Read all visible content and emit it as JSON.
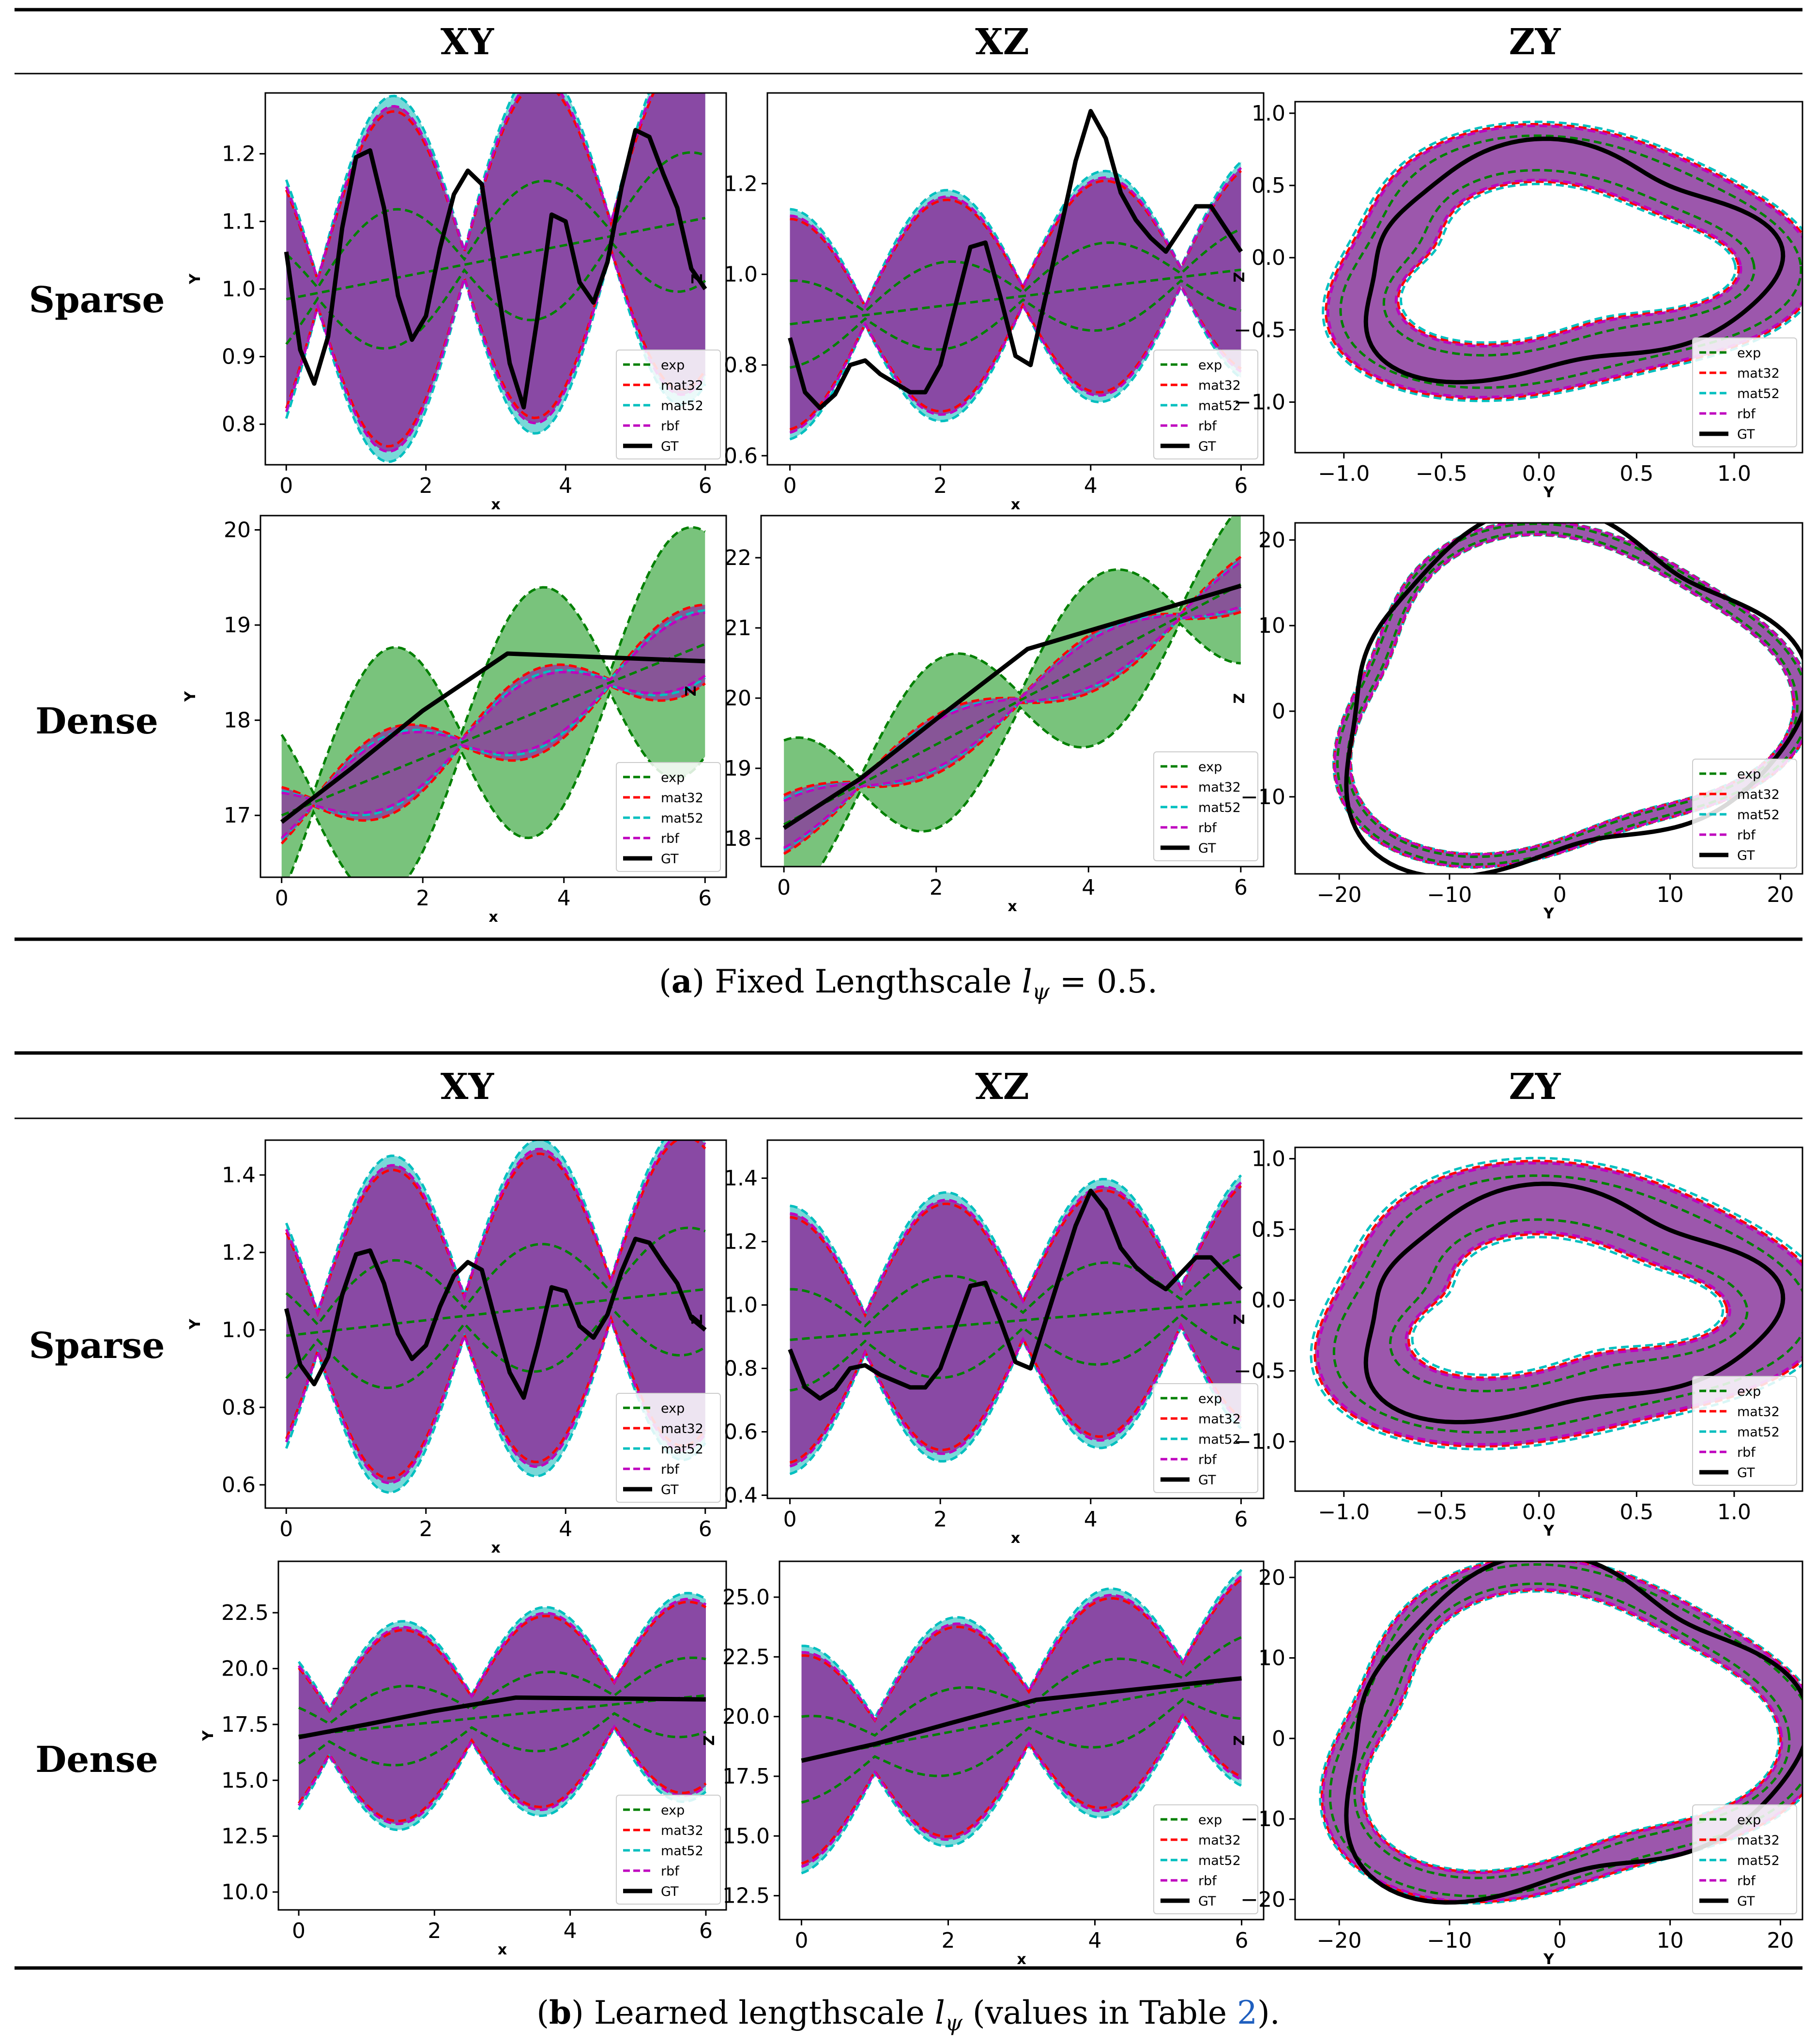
{
  "colors": {
    "exp": "#008000",
    "mat32": "#ff0000",
    "mat52": "#00bfbf",
    "rbf": "#bf00bf",
    "GT": "#000000",
    "purple_fill": "#8b3a9e",
    "green_fill": "#4caf50",
    "cyan_fill": "#40c8c8",
    "link": "#1f5fbf"
  },
  "sections": [
    {
      "column_headers": [
        "XY",
        "XZ",
        "ZY"
      ],
      "row_labels": [
        "Sparse",
        "Dense"
      ],
      "caption": {
        "label": "a",
        "prefix": "(",
        "suffix": ") Fixed Lengthscale",
        "math": "l",
        "sub": "ψ",
        "rest": " = 0.5."
      }
    },
    {
      "column_headers": [
        "XY",
        "XZ",
        "ZY"
      ],
      "row_labels": [
        "Sparse",
        "Dense"
      ],
      "caption": {
        "label": "b",
        "prefix": "(",
        "suffix": ") Learned lengthscale",
        "math": "l",
        "sub": "ψ",
        "rest_before_link": " (values in Table ",
        "link": "2",
        "rest_after_link": ")."
      }
    }
  ],
  "legend_entries": [
    "exp",
    "mat32",
    "mat52",
    "rbf",
    "GT"
  ],
  "chart_data": [
    {
      "id": "a-sparse-xy",
      "type": "line",
      "xlabel": "x",
      "ylabel": "Y",
      "xlim": [
        -0.3,
        6.3
      ],
      "ylim": [
        0.74,
        1.29
      ],
      "xticks": [
        "0",
        "2",
        "4",
        "6"
      ],
      "yticks": [
        "0.8",
        "0.9",
        "1.0",
        "1.1",
        "1.2"
      ],
      "gt": [
        [
          0,
          1.055
        ],
        [
          0.2,
          0.91
        ],
        [
          0.4,
          0.86
        ],
        [
          0.6,
          0.93
        ],
        [
          0.8,
          1.09
        ],
        [
          1.0,
          1.195
        ],
        [
          1.2,
          1.205
        ],
        [
          1.4,
          1.12
        ],
        [
          1.6,
          0.99
        ],
        [
          1.8,
          0.925
        ],
        [
          2.0,
          0.96
        ],
        [
          2.2,
          1.06
        ],
        [
          2.4,
          1.14
        ],
        [
          2.6,
          1.175
        ],
        [
          2.8,
          1.155
        ],
        [
          3.0,
          1.02
        ],
        [
          3.2,
          0.89
        ],
        [
          3.4,
          0.825
        ],
        [
          3.6,
          0.96
        ],
        [
          3.8,
          1.11
        ],
        [
          4.0,
          1.1
        ],
        [
          4.2,
          1.01
        ],
        [
          4.4,
          0.98
        ],
        [
          4.6,
          1.04
        ],
        [
          4.8,
          1.15
        ],
        [
          5.0,
          1.235
        ],
        [
          5.2,
          1.225
        ],
        [
          5.4,
          1.17
        ],
        [
          5.6,
          1.12
        ],
        [
          5.8,
          1.03
        ],
        [
          6.0,
          1.0
        ]
      ],
      "model_mean": {
        "center": 0.985,
        "amp": 0.0,
        "slope": 0.02
      },
      "band": {
        "amp": 0.235,
        "period": 2.1,
        "phase": 0.45,
        "extra": 0.02
      },
      "fill": "purple"
    },
    {
      "id": "a-sparse-xz",
      "type": "line",
      "xlabel": "x",
      "ylabel": "Z",
      "xlim": [
        -0.3,
        6.3
      ],
      "ylim": [
        0.58,
        1.4
      ],
      "xticks": [
        "0",
        "2",
        "4",
        "6"
      ],
      "yticks": [
        "0.6",
        "0.8",
        "1.0",
        "1.2"
      ],
      "gt": [
        [
          0,
          0.86
        ],
        [
          0.2,
          0.74
        ],
        [
          0.4,
          0.705
        ],
        [
          0.6,
          0.735
        ],
        [
          0.8,
          0.8
        ],
        [
          1.0,
          0.81
        ],
        [
          1.2,
          0.78
        ],
        [
          1.4,
          0.76
        ],
        [
          1.6,
          0.74
        ],
        [
          1.8,
          0.74
        ],
        [
          2.0,
          0.8
        ],
        [
          2.2,
          0.93
        ],
        [
          2.4,
          1.06
        ],
        [
          2.6,
          1.07
        ],
        [
          2.8,
          0.95
        ],
        [
          3.0,
          0.82
        ],
        [
          3.2,
          0.8
        ],
        [
          3.4,
          0.95
        ],
        [
          3.6,
          1.1
        ],
        [
          3.8,
          1.25
        ],
        [
          4.0,
          1.36
        ],
        [
          4.2,
          1.3
        ],
        [
          4.4,
          1.18
        ],
        [
          4.6,
          1.12
        ],
        [
          4.8,
          1.08
        ],
        [
          5.0,
          1.05
        ],
        [
          5.2,
          1.1
        ],
        [
          5.4,
          1.15
        ],
        [
          5.6,
          1.15
        ],
        [
          5.8,
          1.1
        ],
        [
          6.0,
          1.05
        ]
      ],
      "model_mean": {
        "center": 0.89,
        "amp": 0.0,
        "slope": 0.02
      },
      "band": {
        "amp": 0.22,
        "period": 2.1,
        "phase": 1.0,
        "extra": 0.02
      },
      "fill": "purple"
    },
    {
      "id": "a-sparse-zy",
      "type": "line",
      "xlabel": "Y",
      "ylabel": "Z",
      "xlim": [
        -1.25,
        1.35
      ],
      "ylim": [
        -1.35,
        1.08
      ],
      "xticks": [
        "−1.0",
        "−0.5",
        "0.0",
        "0.5",
        "1.0"
      ],
      "yticks": [
        "−1.0",
        "−0.5",
        "0.0",
        "0.5",
        "1.0"
      ],
      "xtickvals": [
        -1.0,
        -0.5,
        0.0,
        0.5,
        1.0
      ],
      "ytickvals": [
        -1.0,
        -0.5,
        0.0,
        0.5,
        1.0
      ],
      "ring": {
        "cx": 0.1,
        "cy": -0.05,
        "rx": 1.02,
        "ry": 0.72,
        "width": 0.2
      },
      "fill": "purple"
    },
    {
      "id": "a-dense-xy",
      "type": "line",
      "xlabel": "x",
      "ylabel": "Y",
      "xlim": [
        -0.3,
        6.3
      ],
      "ylim": [
        16.35,
        20.15
      ],
      "xticks": [
        "0",
        "2",
        "4",
        "6"
      ],
      "yticks": [
        "17",
        "18",
        "19",
        "20"
      ],
      "gt": [
        [
          0,
          16.93
        ],
        [
          1,
          17.5
        ],
        [
          2,
          18.1
        ],
        [
          3.2,
          18.7
        ],
        [
          6,
          18.62
        ]
      ],
      "model_mean": {
        "center": 17.0,
        "amp": 0.0,
        "slope": 0.3
      },
      "band": {
        "amp": 1.2,
        "period": 2.1,
        "phase": 0.45,
        "extra": 0.1
      },
      "fill": "green"
    },
    {
      "id": "a-dense-xz",
      "type": "line",
      "xlabel": "x",
      "ylabel": "Z",
      "xlim": [
        -0.3,
        6.3
      ],
      "ylim": [
        17.6,
        22.6
      ],
      "xticks": [
        "0",
        "2",
        "4",
        "6"
      ],
      "yticks": [
        "18",
        "19",
        "20",
        "21",
        "22"
      ],
      "gt": [
        [
          0,
          18.15
        ],
        [
          1,
          18.85
        ],
        [
          2,
          19.7
        ],
        [
          3.2,
          20.7
        ],
        [
          6,
          21.6
        ]
      ],
      "model_mean": {
        "center": 18.2,
        "amp": 0.0,
        "slope": 0.57
      },
      "band": {
        "amp": 1.1,
        "period": 2.1,
        "phase": 1.0,
        "extra": 0.1
      },
      "fill": "green"
    },
    {
      "id": "a-dense-zy",
      "type": "line",
      "xlabel": "Y",
      "ylabel": "Z",
      "xlim": [
        -24,
        22
      ],
      "ylim": [
        -19,
        22
      ],
      "xticks": [
        "−20",
        "−10",
        "0",
        "10",
        "20"
      ],
      "yticks": [
        "−10",
        "0",
        "10",
        "20"
      ],
      "xtickvals": [
        -20,
        -10,
        0,
        10,
        20
      ],
      "ytickvals": [
        -10,
        0,
        10,
        20
      ],
      "ring": {
        "cx": 0.0,
        "cy": 1.5,
        "rx": 20.0,
        "ry": 18.5,
        "width": 0.8
      },
      "fill": "purple"
    },
    {
      "id": "b-sparse-xy",
      "type": "line",
      "xlabel": "x",
      "ylabel": "Y",
      "xlim": [
        -0.3,
        6.3
      ],
      "ylim": [
        0.54,
        1.49
      ],
      "xticks": [
        "0",
        "2",
        "4",
        "6"
      ],
      "yticks": [
        "0.6",
        "0.8",
        "1.0",
        "1.2",
        "1.4"
      ],
      "gt": [
        [
          0,
          1.055
        ],
        [
          0.2,
          0.91
        ],
        [
          0.4,
          0.86
        ],
        [
          0.6,
          0.93
        ],
        [
          0.8,
          1.09
        ],
        [
          1.0,
          1.195
        ],
        [
          1.2,
          1.205
        ],
        [
          1.4,
          1.12
        ],
        [
          1.6,
          0.99
        ],
        [
          1.8,
          0.925
        ],
        [
          2.0,
          0.96
        ],
        [
          2.2,
          1.06
        ],
        [
          2.4,
          1.14
        ],
        [
          2.6,
          1.175
        ],
        [
          2.8,
          1.155
        ],
        [
          3.0,
          1.02
        ],
        [
          3.2,
          0.89
        ],
        [
          3.4,
          0.825
        ],
        [
          3.6,
          0.96
        ],
        [
          3.8,
          1.11
        ],
        [
          4.0,
          1.1
        ],
        [
          4.2,
          1.01
        ],
        [
          4.4,
          0.98
        ],
        [
          4.6,
          1.04
        ],
        [
          4.8,
          1.15
        ],
        [
          5.0,
          1.235
        ],
        [
          5.2,
          1.225
        ],
        [
          5.4,
          1.17
        ],
        [
          5.6,
          1.12
        ],
        [
          5.8,
          1.03
        ],
        [
          6.0,
          1.0
        ]
      ],
      "model_mean": {
        "center": 0.985,
        "amp": 0.0,
        "slope": 0.02
      },
      "band": {
        "amp": 0.36,
        "period": 2.1,
        "phase": 0.45,
        "extra": 0.05
      },
      "fill": "purple"
    },
    {
      "id": "b-sparse-xz",
      "type": "line",
      "xlabel": "x",
      "ylabel": "Z",
      "xlim": [
        -0.3,
        6.3
      ],
      "ylim": [
        0.39,
        1.52
      ],
      "xticks": [
        "0",
        "2",
        "4",
        "6"
      ],
      "yticks": [
        "0.4",
        "0.6",
        "0.8",
        "1.0",
        "1.2",
        "1.4"
      ],
      "gt": [
        [
          0,
          0.86
        ],
        [
          0.2,
          0.74
        ],
        [
          0.4,
          0.705
        ],
        [
          0.6,
          0.735
        ],
        [
          0.8,
          0.8
        ],
        [
          1.0,
          0.81
        ],
        [
          1.2,
          0.78
        ],
        [
          1.4,
          0.76
        ],
        [
          1.6,
          0.74
        ],
        [
          1.8,
          0.74
        ],
        [
          2.0,
          0.8
        ],
        [
          2.2,
          0.93
        ],
        [
          2.4,
          1.06
        ],
        [
          2.6,
          1.07
        ],
        [
          2.8,
          0.95
        ],
        [
          3.0,
          0.82
        ],
        [
          3.2,
          0.8
        ],
        [
          3.4,
          0.95
        ],
        [
          3.6,
          1.1
        ],
        [
          3.8,
          1.25
        ],
        [
          4.0,
          1.36
        ],
        [
          4.2,
          1.3
        ],
        [
          4.4,
          1.18
        ],
        [
          4.6,
          1.12
        ],
        [
          4.8,
          1.08
        ],
        [
          5.0,
          1.05
        ],
        [
          5.2,
          1.1
        ],
        [
          5.4,
          1.15
        ],
        [
          5.6,
          1.15
        ],
        [
          5.8,
          1.1
        ],
        [
          6.0,
          1.05
        ]
      ],
      "model_mean": {
        "center": 0.89,
        "amp": 0.0,
        "slope": 0.02
      },
      "band": {
        "amp": 0.34,
        "period": 2.1,
        "phase": 1.0,
        "extra": 0.06
      },
      "fill": "purple"
    },
    {
      "id": "b-sparse-zy",
      "type": "line",
      "xlabel": "Y",
      "ylabel": "Z",
      "xlim": [
        -1.25,
        1.35
      ],
      "ylim": [
        -1.35,
        1.08
      ],
      "xticks": [
        "−1.0",
        "−0.5",
        "0.0",
        "0.5",
        "1.0"
      ],
      "yticks": [
        "−1.0",
        "−0.5",
        "0.0",
        "0.5",
        "1.0"
      ],
      "xtickvals": [
        -1.0,
        -0.5,
        0.0,
        0.5,
        1.0
      ],
      "ytickvals": [
        -1.0,
        -0.5,
        0.0,
        0.5,
        1.0
      ],
      "ring": {
        "cx": 0.1,
        "cy": -0.05,
        "rx": 1.02,
        "ry": 0.72,
        "width": 0.26
      },
      "fill": "purple"
    },
    {
      "id": "b-dense-xy",
      "type": "line",
      "xlabel": "x",
      "ylabel": "Y",
      "xlim": [
        -0.3,
        6.3
      ],
      "ylim": [
        9.2,
        24.8
      ],
      "xticks": [
        "0",
        "2",
        "4",
        "6"
      ],
      "yticks": [
        "10.0",
        "12.5",
        "15.0",
        "17.5",
        "20.0",
        "22.5"
      ],
      "ytickvals": [
        10,
        12.5,
        15,
        17.5,
        20,
        22.5
      ],
      "gt": [
        [
          0,
          16.93
        ],
        [
          1,
          17.5
        ],
        [
          2,
          18.1
        ],
        [
          3.2,
          18.7
        ],
        [
          6,
          18.62
        ]
      ],
      "model_mean": {
        "center": 17.0,
        "amp": 0.0,
        "slope": 0.3
      },
      "band": {
        "amp": 3.4,
        "period": 2.1,
        "phase": 0.45,
        "extra": 1.0
      },
      "fill": "purple"
    },
    {
      "id": "b-dense-xz",
      "type": "line",
      "xlabel": "x",
      "ylabel": "Z",
      "xlim": [
        -0.3,
        6.3
      ],
      "ylim": [
        11.5,
        26.5
      ],
      "xticks": [
        "0",
        "2",
        "4",
        "6"
      ],
      "yticks": [
        "12.5",
        "15.0",
        "17.5",
        "20.0",
        "22.5",
        "25.0"
      ],
      "ytickvals": [
        12.5,
        15,
        17.5,
        20,
        22.5,
        25
      ],
      "gt": [
        [
          0,
          18.15
        ],
        [
          1,
          18.85
        ],
        [
          2,
          19.7
        ],
        [
          3.2,
          20.7
        ],
        [
          6,
          21.6
        ]
      ],
      "model_mean": {
        "center": 18.2,
        "amp": 0.0,
        "slope": 0.57
      },
      "band": {
        "amp": 3.4,
        "period": 2.1,
        "phase": 1.0,
        "extra": 1.1
      },
      "fill": "purple"
    },
    {
      "id": "b-dense-zy",
      "type": "line",
      "xlabel": "Y",
      "ylabel": "Z",
      "xlim": [
        -24,
        22
      ],
      "ylim": [
        -22.5,
        22
      ],
      "xticks": [
        "−20",
        "−10",
        "0",
        "10",
        "20"
      ],
      "yticks": [
        "−20",
        "−10",
        "0",
        "10",
        "20"
      ],
      "xtickvals": [
        -20,
        -10,
        0,
        10,
        20
      ],
      "ytickvals": [
        -20,
        -10,
        0,
        10,
        20
      ],
      "ring": {
        "cx": 0.0,
        "cy": 0.5,
        "rx": 20.0,
        "ry": 18.5,
        "width": 2.0
      },
      "fill": "purple"
    }
  ]
}
